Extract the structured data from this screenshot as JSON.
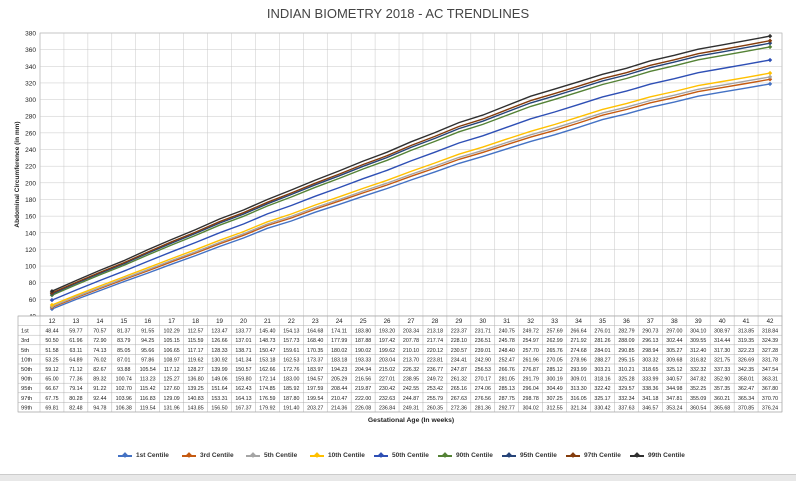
{
  "chart_data": {
    "type": "line",
    "title": "INDIAN BIOMETRY 2018 - AC TRENDLINES",
    "xlabel": "Gestational Age (In weeks)",
    "ylabel": "Abdominal Circumference (in mm)",
    "ylim": [
      40,
      380
    ],
    "yticks": [
      40,
      60,
      80,
      100,
      120,
      140,
      160,
      180,
      200,
      220,
      240,
      260,
      280,
      300,
      320,
      340,
      360,
      380
    ],
    "categories": [
      12,
      13,
      14,
      15,
      16,
      17,
      18,
      19,
      20,
      21,
      22,
      23,
      24,
      25,
      26,
      27,
      28,
      29,
      30,
      31,
      32,
      33,
      34,
      35,
      36,
      37,
      38,
      39,
      40,
      41,
      42
    ],
    "grid": true,
    "legend_position": "bottom",
    "series": [
      {
        "name": "1st Centile",
        "short": "1st",
        "color": "#4472c4",
        "values": [
          48.44,
          59.77,
          70.57,
          81.37,
          91.55,
          102.29,
          112.57,
          123.47,
          133.77,
          145.4,
          154.13,
          164.68,
          174.11,
          183.8,
          193.2,
          203.34,
          213.18,
          223.37,
          231.71,
          240.75,
          249.72,
          257.69,
          266.64,
          276.01,
          282.79,
          290.73,
          297.0,
          304.1,
          308.97,
          313.85,
          318.84
        ]
      },
      {
        "name": "3rd Centile",
        "short": "3rd",
        "color": "#c55a11",
        "values": [
          50.5,
          61.96,
          72.9,
          83.79,
          94.25,
          105.15,
          115.59,
          126.66,
          137.01,
          148.73,
          157.73,
          168.4,
          177.99,
          187.88,
          197.42,
          207.78,
          217.74,
          228.1,
          236.51,
          245.78,
          254.97,
          262.99,
          271.92,
          281.26,
          288.09,
          296.13,
          302.44,
          309.55,
          314.44,
          319.35,
          324.39
        ]
      },
      {
        "name": "5th Centile",
        "short": "5th",
        "color": "#a5a5a5",
        "values": [
          51.58,
          63.11,
          74.13,
          85.05,
          95.66,
          106.65,
          117.17,
          128.33,
          138.71,
          150.47,
          159.61,
          170.35,
          180.02,
          190.02,
          199.62,
          210.1,
          220.12,
          230.57,
          239.01,
          248.4,
          257.7,
          265.76,
          274.68,
          284.01,
          290.85,
          298.94,
          305.27,
          312.4,
          317.3,
          322.23,
          327.28
        ]
      },
      {
        "name": "10th Centile",
        "short": "10th",
        "color": "#ffc000",
        "values": [
          53.25,
          64.89,
          76.02,
          87.01,
          97.86,
          108.97,
          119.62,
          130.92,
          141.34,
          153.18,
          162.53,
          173.37,
          183.18,
          193.33,
          203.04,
          213.7,
          223.81,
          234.41,
          242.9,
          252.47,
          261.96,
          270.05,
          278.96,
          288.27,
          295.15,
          303.32,
          309.68,
          316.82,
          321.75,
          326.69,
          331.78
        ]
      },
      {
        "name": "50th Centile",
        "short": "50th",
        "color": "#2e4fb5",
        "values": [
          59.12,
          71.12,
          82.67,
          93.88,
          105.54,
          117.12,
          128.27,
          139.99,
          150.57,
          162.66,
          172.76,
          183.97,
          194.23,
          204.94,
          215.02,
          226.32,
          236.77,
          247.87,
          256.53,
          266.76,
          276.87,
          285.12,
          293.99,
          303.21,
          310.21,
          318.65,
          325.12,
          332.32,
          337.33,
          342.35,
          347.54
        ]
      },
      {
        "name": "90th Centile",
        "short": "90th",
        "color": "#548235",
        "values": [
          65.0,
          77.36,
          89.32,
          100.74,
          113.23,
          125.27,
          136.8,
          149.06,
          159.8,
          172.14,
          183.0,
          194.57,
          205.29,
          216.56,
          227.01,
          238.95,
          249.72,
          261.32,
          270.17,
          281.05,
          291.79,
          300.19,
          309.01,
          318.16,
          325.28,
          333.99,
          340.57,
          347.82,
          352.9,
          358.01,
          363.31
        ]
      },
      {
        "name": "95th Centile",
        "short": "95th",
        "color": "#264478",
        "values": [
          66.67,
          79.14,
          91.22,
          102.7,
          115.42,
          127.6,
          139.25,
          151.64,
          162.43,
          174.85,
          185.92,
          197.59,
          208.44,
          219.87,
          230.42,
          242.55,
          253.42,
          265.16,
          274.06,
          285.13,
          296.04,
          304.49,
          313.3,
          322.42,
          329.57,
          338.36,
          344.98,
          352.25,
          357.35,
          362.47,
          367.8
        ]
      },
      {
        "name": "97th Centile",
        "short": "97th",
        "color": "#843c0c",
        "values": [
          67.75,
          80.28,
          92.44,
          103.96,
          116.83,
          129.09,
          140.83,
          153.31,
          164.13,
          176.59,
          187.8,
          199.54,
          210.47,
          222.0,
          232.63,
          244.87,
          255.79,
          267.63,
          276.56,
          287.75,
          298.78,
          307.25,
          316.05,
          325.17,
          332.34,
          341.18,
          347.81,
          355.09,
          360.21,
          365.34,
          370.7
        ]
      },
      {
        "name": "99th Centile",
        "short": "99th",
        "color": "#303030",
        "values": [
          69.81,
          82.48,
          94.78,
          106.38,
          119.54,
          131.96,
          143.85,
          156.5,
          167.37,
          179.92,
          191.4,
          203.27,
          214.36,
          226.08,
          236.84,
          249.31,
          260.35,
          272.36,
          281.36,
          292.77,
          304.02,
          312.55,
          321.34,
          330.42,
          337.63,
          346.57,
          353.24,
          360.54,
          365.68,
          370.85,
          376.24
        ]
      }
    ]
  }
}
